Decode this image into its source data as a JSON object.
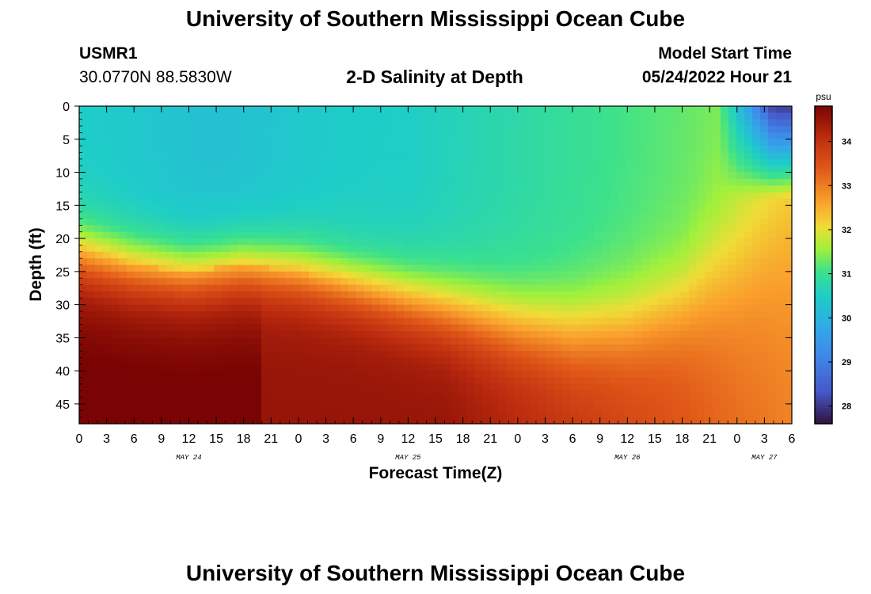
{
  "header": {
    "title": "University of Southern Mississippi Ocean Cube",
    "station": "USMR1",
    "coordinates": "30.0770N  88.5830W",
    "subtitle": "2-D Salinity at Depth",
    "model_start_label": "Model Start Time",
    "model_start_value": "05/24/2022 Hour 21"
  },
  "footer": {
    "title": "University of Southern Mississippi Ocean Cube"
  },
  "chart_data": {
    "type": "heatmap",
    "ylabel": "Depth (ft)",
    "xlabel": "Forecast Time(Z)",
    "xlim": [
      0,
      78
    ],
    "ylim": [
      48,
      0
    ],
    "x_tick_values": [
      0,
      3,
      6,
      9,
      12,
      15,
      18,
      21,
      24,
      27,
      30,
      33,
      36,
      39,
      42,
      45,
      48,
      51,
      54,
      57,
      60,
      63,
      66,
      69,
      72,
      75,
      78
    ],
    "x_tick_labels": [
      "0",
      "3",
      "6",
      "9",
      "12",
      "15",
      "18",
      "21",
      "0",
      "3",
      "6",
      "9",
      "12",
      "15",
      "18",
      "21",
      "0",
      "3",
      "6",
      "9",
      "12",
      "15",
      "18",
      "21",
      "0",
      "3",
      "6"
    ],
    "date_labels": [
      {
        "label": "MAY 24",
        "x": 12
      },
      {
        "label": "MAY 25",
        "x": 36
      },
      {
        "label": "MAY 26",
        "x": 60
      },
      {
        "label": "MAY 27",
        "x": 75
      }
    ],
    "y_tick_values": [
      0,
      5,
      10,
      15,
      20,
      25,
      30,
      35,
      40,
      45
    ],
    "y_tick_labels": [
      "0",
      "5",
      "10",
      "15",
      "20",
      "25",
      "30",
      "35",
      "40",
      "45"
    ],
    "colorbar": {
      "unit": "psu",
      "min": 27.6,
      "max": 34.8,
      "tick_values": [
        28,
        29,
        30,
        31,
        32,
        33,
        34
      ],
      "tick_labels": [
        "28",
        "29",
        "30",
        "31",
        "32",
        "33",
        "34"
      ]
    },
    "surface_salinity_psu": 30.5,
    "bottom_salinity_psu": 34.5,
    "halocline_depth_ft": [
      {
        "x": 0,
        "depth": 22
      },
      {
        "x": 6,
        "depth": 24
      },
      {
        "x": 12,
        "depth": 25
      },
      {
        "x": 18,
        "depth": 24
      },
      {
        "x": 24,
        "depth": 25
      },
      {
        "x": 30,
        "depth": 27
      },
      {
        "x": 36,
        "depth": 29
      },
      {
        "x": 42,
        "depth": 31
      },
      {
        "x": 48,
        "depth": 33
      },
      {
        "x": 54,
        "depth": 34
      },
      {
        "x": 60,
        "depth": 33
      },
      {
        "x": 66,
        "depth": 30
      },
      {
        "x": 72,
        "depth": 24
      },
      {
        "x": 78,
        "depth": 15
      }
    ],
    "low_salinity_zone": {
      "x_start": 72,
      "x_end": 78,
      "depth_top": 0,
      "depth_bottom": 14,
      "min_psu": 27.8
    }
  }
}
